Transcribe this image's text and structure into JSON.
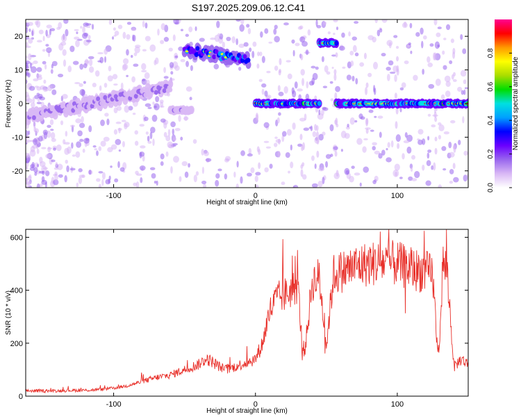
{
  "title": "S197.2025.209.06.12.C41",
  "chart_data": [
    {
      "type": "heatmap",
      "xlabel": "Height of straight line (km)",
      "ylabel": "Frequency (Hz)",
      "xlim": [
        -162,
        150
      ],
      "ylim": [
        -25,
        25
      ],
      "xticks": [
        -100,
        0,
        100
      ],
      "yticks": [
        -20,
        -10,
        0,
        10,
        20
      ],
      "colorbar": {
        "label": "Normalized spectral amplitude",
        "range": [
          0,
          1
        ],
        "ticks": [
          0.0,
          0.2,
          0.4,
          0.6,
          0.8
        ],
        "colors": [
          "#ffffff",
          "#d9b8f5",
          "#9966ee",
          "#6a00ff",
          "#0000ff",
          "#00a0ff",
          "#00e0e0",
          "#00dd00",
          "#aadd00",
          "#ffff00",
          "#ff9900",
          "#ff0000",
          "#ff0090"
        ]
      },
      "features": [
        {
          "x_range": [
            -162,
            -60
          ],
          "freq_trend": "rising",
          "freq_start": -4,
          "freq_end": 5,
          "peak_amplitude": 0.3
        },
        {
          "x_range": [
            -60,
            -45
          ],
          "freq": -2,
          "peak_amplitude": 0.25
        },
        {
          "x_range": [
            -50,
            -5
          ],
          "freq_start": 16,
          "freq_end": 13,
          "peak_amplitude": 0.8
        },
        {
          "x_range": [
            0,
            45
          ],
          "freq": 0,
          "peak_amplitude": 1.0
        },
        {
          "x_range": [
            45,
            57
          ],
          "freq": 18,
          "peak_amplitude": 1.0
        },
        {
          "x_range": [
            57,
            150
          ],
          "freq": 0,
          "peak_amplitude": 1.0
        }
      ]
    },
    {
      "type": "line",
      "xlabel": "Height of straight line (km)",
      "ylabel": "SNR (10 * v/v)",
      "xlim": [
        -162,
        150
      ],
      "ylim": [
        0,
        630
      ],
      "xticks": [
        -100,
        0,
        100
      ],
      "yticks": [
        0,
        200,
        400,
        600
      ],
      "line_color": "#e8302a",
      "series": [
        {
          "x": [
            -162,
            -150,
            -140,
            -130,
            -120,
            -110,
            -100,
            -90,
            -80,
            -70,
            -60,
            -55,
            -50,
            -45,
            -40,
            -35,
            -30,
            -25,
            -20,
            -15,
            -10,
            -5,
            0,
            5,
            10,
            15,
            20,
            25,
            30,
            33,
            35,
            40,
            45,
            50,
            55,
            60,
            65,
            70,
            80,
            90,
            100,
            110,
            120,
            125,
            128,
            130,
            132,
            135,
            140,
            145,
            150
          ],
          "y": [
            20,
            20,
            20,
            22,
            22,
            25,
            30,
            40,
            55,
            70,
            80,
            90,
            100,
            110,
            120,
            140,
            130,
            110,
            100,
            110,
            120,
            130,
            140,
            200,
            320,
            370,
            380,
            400,
            420,
            180,
            180,
            430,
            450,
            190,
            460,
            470,
            480,
            490,
            500,
            505,
            500,
            480,
            470,
            460,
            200,
            190,
            500,
            480,
            110,
            140,
            120
          ]
        }
      ]
    }
  ]
}
